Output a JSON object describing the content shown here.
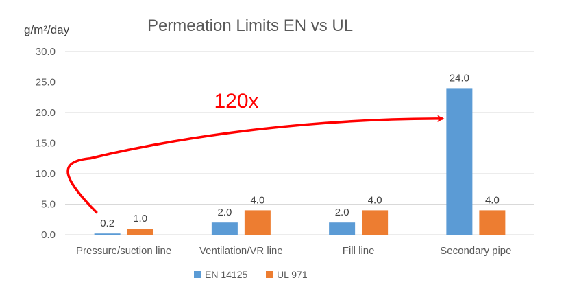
{
  "chart_data": {
    "type": "bar",
    "title": "Permeation Limits EN vs UL",
    "ylabel": "g/m²/day",
    "xlabel": "",
    "categories": [
      "Pressure/suction line",
      "Ventilation/VR line",
      "Fill line",
      "Secondary pipe"
    ],
    "series": [
      {
        "name": "EN 14125",
        "color": "#5b9bd5",
        "values": [
          0.2,
          2.0,
          2.0,
          24.0
        ],
        "labels": [
          "0.2",
          "2.0",
          "2.0",
          "24.0"
        ]
      },
      {
        "name": "UL 971",
        "color": "#ed7d31",
        "values": [
          1.0,
          4.0,
          4.0,
          4.0
        ],
        "labels": [
          "1.0",
          "4.0",
          "4.0",
          "4.0"
        ]
      }
    ],
    "ylim": [
      0,
      30
    ],
    "yticks": [
      0,
      5,
      10,
      15,
      20,
      25,
      30
    ],
    "ytick_labels": [
      "0.0",
      "5.0",
      "10.0",
      "15.0",
      "20.0",
      "25.0",
      "30.0"
    ],
    "grid": true,
    "legend_position": "bottom",
    "annotation": {
      "text": "120x",
      "color": "#ff0000",
      "from": {
        "category": "Pressure/suction line",
        "series": "EN 14125"
      },
      "to": {
        "category": "Secondary pipe",
        "series": "EN 14125"
      }
    }
  }
}
